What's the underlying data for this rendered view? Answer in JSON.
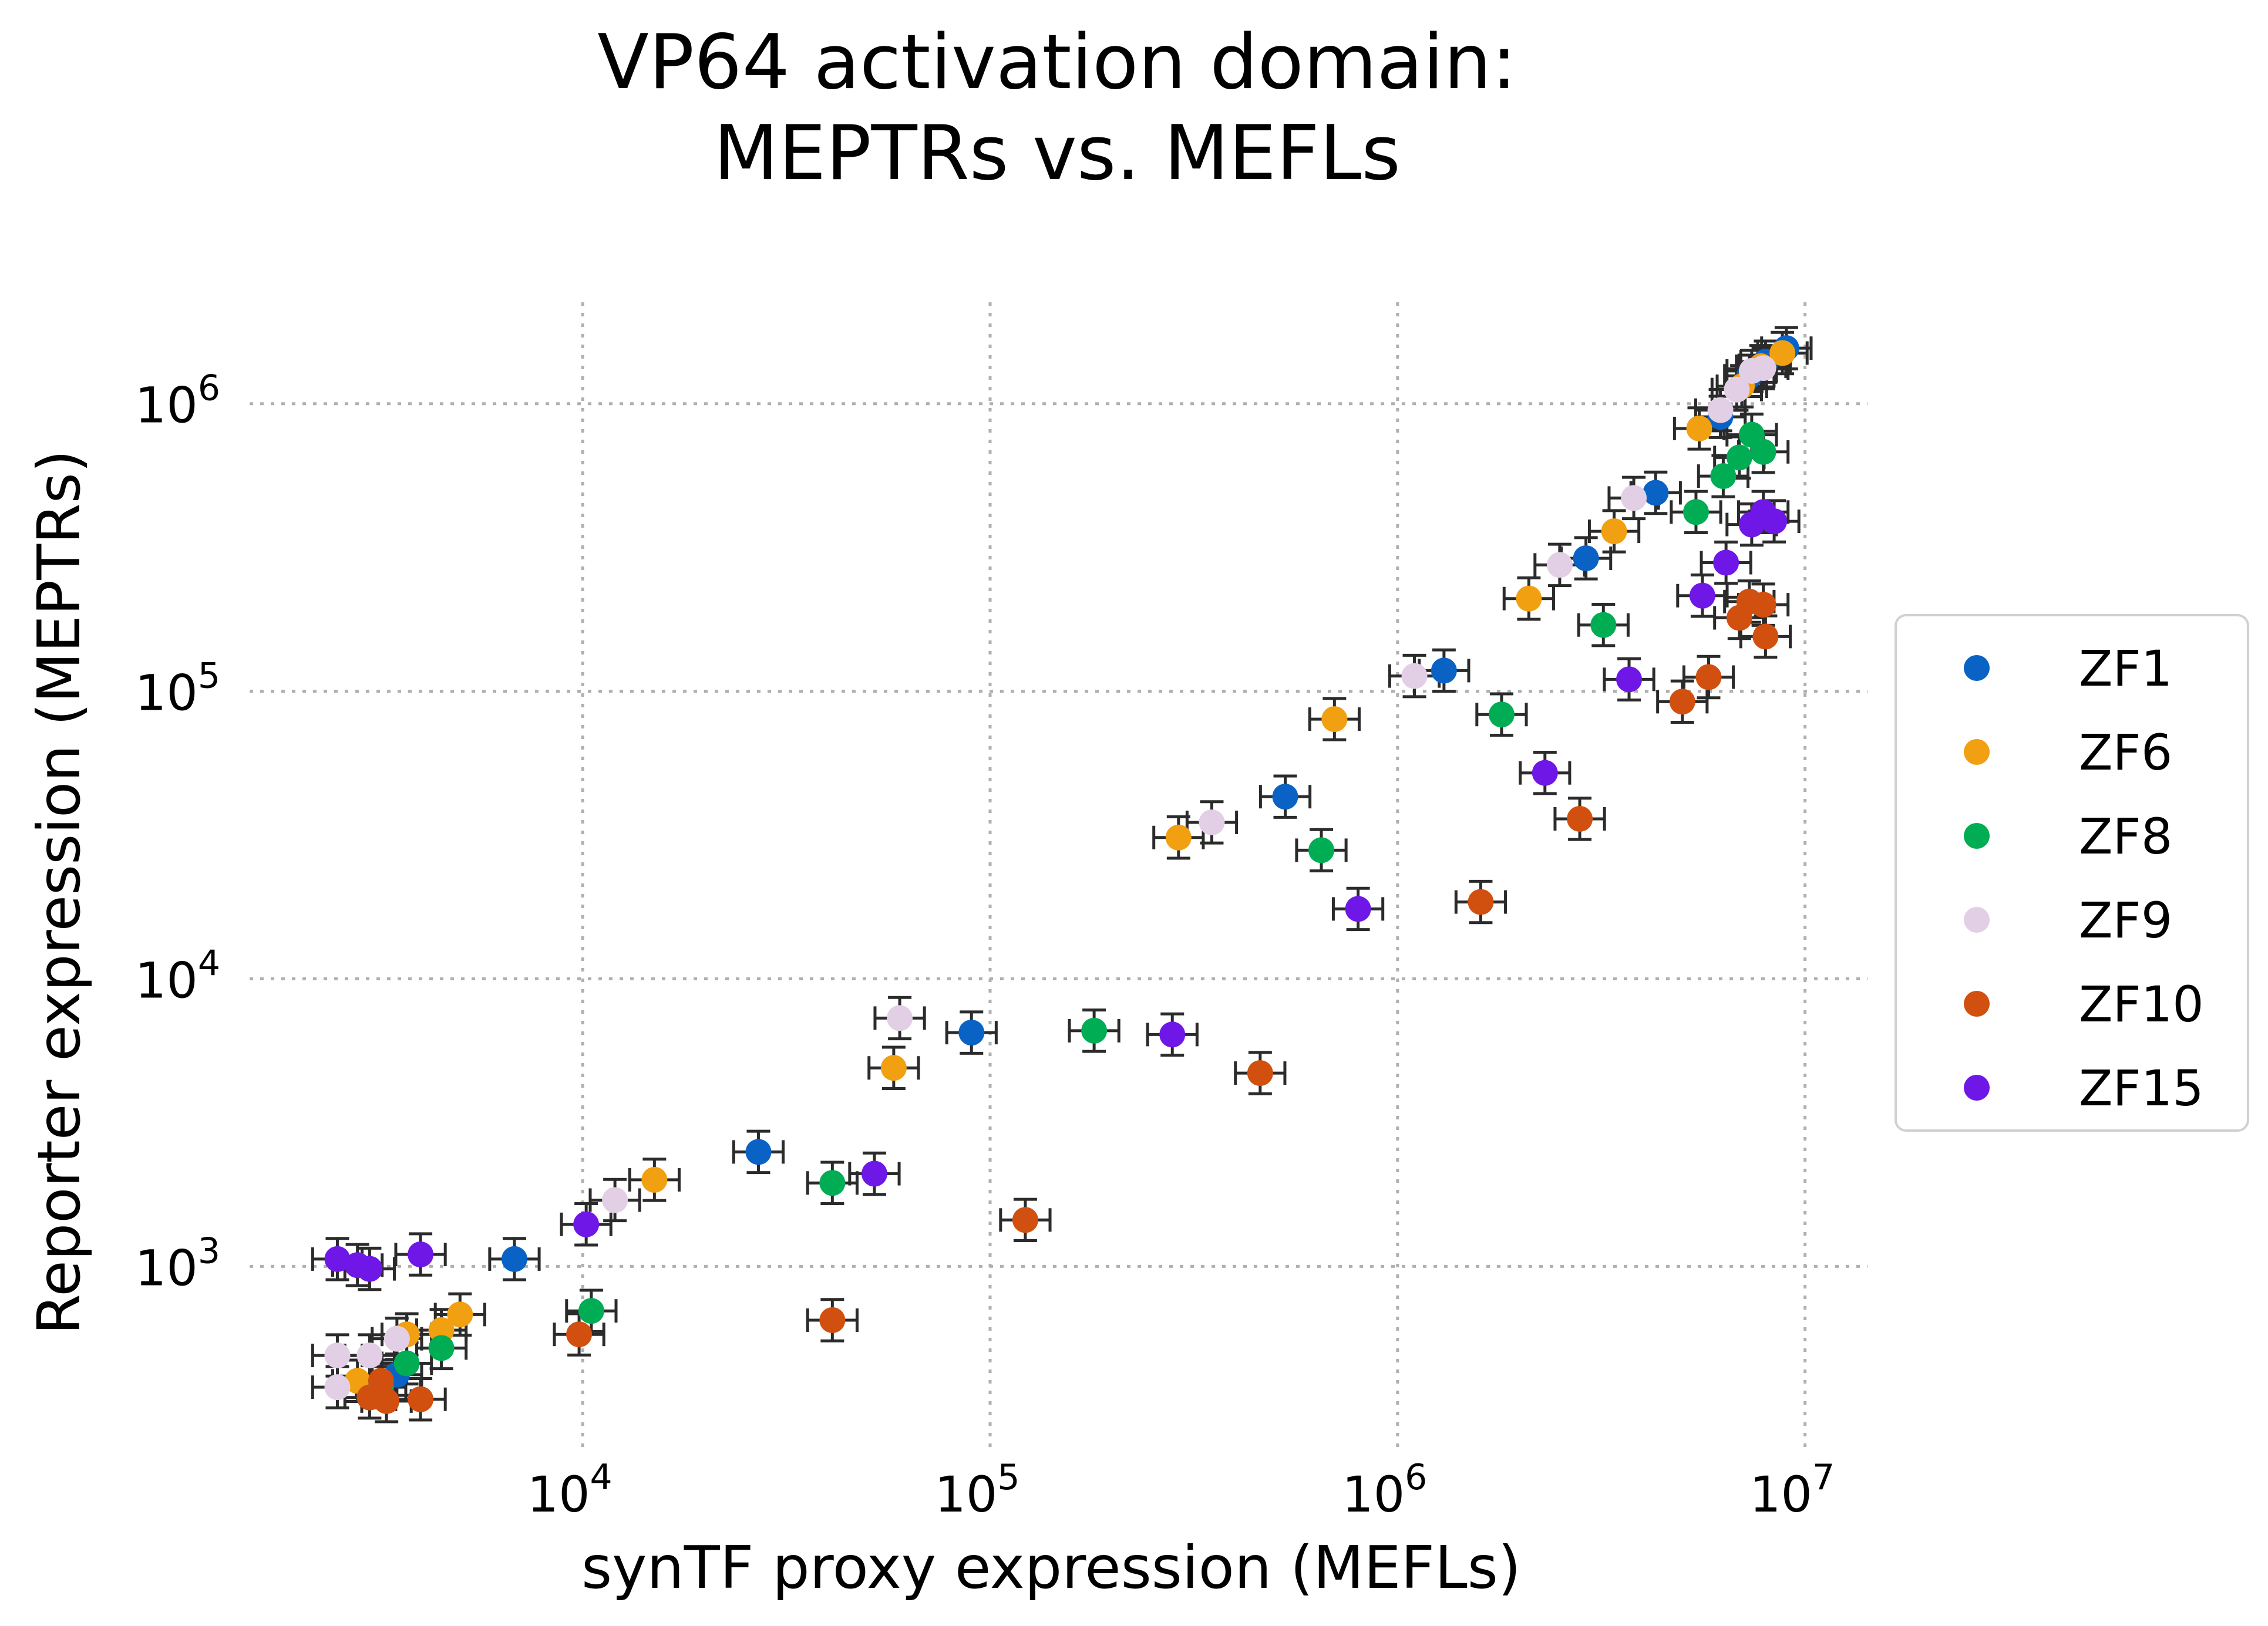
{
  "chart_data": {
    "type": "scatter",
    "title": [
      "VP64 activation domain:",
      "MEPTRs vs. MEFLs"
    ],
    "xlabel": "synTF proxy expression (MEFLs)",
    "ylabel": "Reporter expression (MEPTRs)",
    "xscale": "log",
    "yscale": "log",
    "xlim": [
      1600,
      14000000
    ],
    "ylim": [
      230,
      2200000
    ],
    "grid": true,
    "legend_position": "right",
    "x_ticks": [
      {
        "value": 10000,
        "base": "10",
        "exp": "4"
      },
      {
        "value": 100000,
        "base": "10",
        "exp": "5"
      },
      {
        "value": 1000000,
        "base": "10",
        "exp": "6"
      },
      {
        "value": 10000000,
        "base": "10",
        "exp": "7"
      }
    ],
    "y_ticks": [
      {
        "value": 1000,
        "base": "10",
        "exp": "3"
      },
      {
        "value": 10000,
        "base": "10",
        "exp": "4"
      },
      {
        "value": 100000,
        "base": "10",
        "exp": "5"
      },
      {
        "value": 1000000,
        "base": "10",
        "exp": "6"
      }
    ],
    "series": [
      {
        "name": "ZF1",
        "color": "#0a63c4",
        "points": [
          {
            "x": 3500,
            "y": 420
          },
          {
            "x": 6800,
            "y": 1060
          },
          {
            "x": 27000,
            "y": 2500
          },
          {
            "x": 90000,
            "y": 6500
          },
          {
            "x": 530000,
            "y": 43000
          },
          {
            "x": 1300000,
            "y": 118000
          },
          {
            "x": 2900000,
            "y": 290000
          },
          {
            "x": 4300000,
            "y": 490000
          },
          {
            "x": 6200000,
            "y": 900000
          },
          {
            "x": 7300000,
            "y": 1250000
          },
          {
            "x": 8000000,
            "y": 1400000
          },
          {
            "x": 9000000,
            "y": 1560000
          }
        ]
      },
      {
        "name": "ZF6",
        "color": "#f0a011",
        "points": [
          {
            "x": 2800,
            "y": 400
          },
          {
            "x": 3700,
            "y": 580
          },
          {
            "x": 4500,
            "y": 600
          },
          {
            "x": 5000,
            "y": 680
          },
          {
            "x": 15000,
            "y": 2000
          },
          {
            "x": 58000,
            "y": 4900
          },
          {
            "x": 290000,
            "y": 31000
          },
          {
            "x": 700000,
            "y": 80000
          },
          {
            "x": 2100000,
            "y": 210000
          },
          {
            "x": 3400000,
            "y": 360000
          },
          {
            "x": 5500000,
            "y": 820000
          },
          {
            "x": 7000000,
            "y": 1150000
          },
          {
            "x": 7800000,
            "y": 1350000
          },
          {
            "x": 8800000,
            "y": 1500000
          }
        ]
      },
      {
        "name": "ZF8",
        "color": "#00ad54",
        "points": [
          {
            "x": 3200,
            "y": 380
          },
          {
            "x": 3700,
            "y": 460
          },
          {
            "x": 4500,
            "y": 520
          },
          {
            "x": 10500,
            "y": 700
          },
          {
            "x": 41000,
            "y": 1950
          },
          {
            "x": 180000,
            "y": 6600
          },
          {
            "x": 650000,
            "y": 28000
          },
          {
            "x": 1800000,
            "y": 83000
          },
          {
            "x": 3200000,
            "y": 170000
          },
          {
            "x": 5400000,
            "y": 420000
          },
          {
            "x": 6300000,
            "y": 560000
          },
          {
            "x": 6900000,
            "y": 650000
          },
          {
            "x": 7400000,
            "y": 780000
          },
          {
            "x": 7900000,
            "y": 680000
          }
        ]
      },
      {
        "name": "ZF9",
        "color": "#e2cfe5",
        "points": [
          {
            "x": 2500,
            "y": 380
          },
          {
            "x": 2500,
            "y": 490
          },
          {
            "x": 3000,
            "y": 490
          },
          {
            "x": 3500,
            "y": 560
          },
          {
            "x": 12000,
            "y": 1700
          },
          {
            "x": 60000,
            "y": 7300
          },
          {
            "x": 350000,
            "y": 35000
          },
          {
            "x": 1100000,
            "y": 113000
          },
          {
            "x": 2500000,
            "y": 275000
          },
          {
            "x": 3800000,
            "y": 470000
          },
          {
            "x": 6200000,
            "y": 950000
          },
          {
            "x": 6800000,
            "y": 1120000
          },
          {
            "x": 7400000,
            "y": 1300000
          },
          {
            "x": 7900000,
            "y": 1330000
          }
        ]
      },
      {
        "name": "ZF10",
        "color": "#d1500f",
        "points": [
          {
            "x": 3000,
            "y": 350
          },
          {
            "x": 3200,
            "y": 400
          },
          {
            "x": 3300,
            "y": 340
          },
          {
            "x": 4000,
            "y": 345
          },
          {
            "x": 9800,
            "y": 580
          },
          {
            "x": 41000,
            "y": 650
          },
          {
            "x": 122000,
            "y": 1450
          },
          {
            "x": 460000,
            "y": 4700
          },
          {
            "x": 1600000,
            "y": 18500
          },
          {
            "x": 2800000,
            "y": 36000
          },
          {
            "x": 5000000,
            "y": 92000
          },
          {
            "x": 5800000,
            "y": 112000
          },
          {
            "x": 6900000,
            "y": 180000
          },
          {
            "x": 7300000,
            "y": 205000
          },
          {
            "x": 7900000,
            "y": 200000
          },
          {
            "x": 8000000,
            "y": 155000
          }
        ]
      },
      {
        "name": "ZF15",
        "color": "#6e17e6",
        "points": [
          {
            "x": 2500,
            "y": 1060
          },
          {
            "x": 2800,
            "y": 1010
          },
          {
            "x": 3000,
            "y": 980
          },
          {
            "x": 4000,
            "y": 1100
          },
          {
            "x": 10200,
            "y": 1400
          },
          {
            "x": 52000,
            "y": 2100
          },
          {
            "x": 280000,
            "y": 6400
          },
          {
            "x": 800000,
            "y": 17500
          },
          {
            "x": 2300000,
            "y": 52000
          },
          {
            "x": 3700000,
            "y": 110000
          },
          {
            "x": 5600000,
            "y": 215000
          },
          {
            "x": 6400000,
            "y": 280000
          },
          {
            "x": 7400000,
            "y": 380000
          },
          {
            "x": 7900000,
            "y": 420000
          },
          {
            "x": 8400000,
            "y": 390000
          }
        ]
      }
    ]
  }
}
